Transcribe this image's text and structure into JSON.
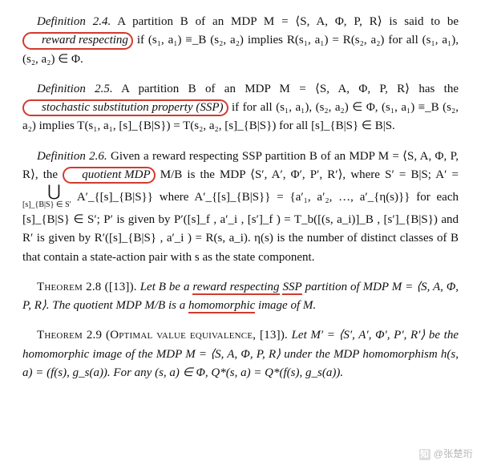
{
  "def24": {
    "label": "Definition 2.4.",
    "text1": "A partition B of an MDP M = ⟨S, A, Φ, P, R⟩ is said to be ",
    "highlight": "reward respecting",
    "text2": " if (s₁, a₁) ≡_B (s₂, a₂) implies R(s₁, a₁) = R(s₂, a₂) for all (s₁, a₁), (s₂, a₂) ∈ Φ."
  },
  "def25": {
    "label": "Definition 2.5.",
    "text1": "A partition B of an MDP M = ⟨S, A, Φ, P, R⟩ has the ",
    "highlight": "stochastic substitution property (SSP)",
    "text2": " if for all (s₁, a₁), (s₂, a₂) ∈ Φ, (s₁, a₁) ≡_B (s₂, a₂) implies T(s₁, a₁, [s]_{B|S}) = T(s₂, a₂, [s]_{B|S}) for all [s]_{B|S} ∈ B|S."
  },
  "def26": {
    "label": "Definition 2.6.",
    "text1": "Given a reward respecting SSP partition B of an MDP M = ⟨S, A, Φ, P, R⟩, the ",
    "highlight": "quotient MDP",
    "text2a": " M/B is the MDP ⟨S′, A′, Φ′, P′, R′⟩, where S′ = B|S; A′ = ",
    "union_sub": "[s]_{B|S} ∈ S′",
    "text2b": " A′_{[s]_{B|S}}  where A′_{[s]_{B|S}} = {a′₁, a′₂, …, a′_{η(s)}} for each [s]_{B|S} ∈ S′; P′ is given by P′([s]_f , a′_i , [s′]_f ) = T_b([(s, a_i)]_B , [s′]_{B|S}) and R′ is given by R′([s]_{B|S} , a′_i ) = R(s, a_i). η(s) is the number of distinct classes of B that contain a state-action pair with s as the state component."
  },
  "thm28": {
    "label": "Theorem 2.8 ([13]).",
    "pre1": "Let B be a ",
    "ul1": "reward respecting",
    "mid1": " ",
    "ul2": "SSP",
    "post1": " partition of MDP M = ⟨S, A, Φ, P, R⟩. The quotient MDP M/B is a ",
    "ul3": "homomorphic",
    "post2": " image of M."
  },
  "thm29": {
    "label": "Theorem 2.9 (Optimal value equivalence, [13]).",
    "text": "Let M′ = ⟨S′, A′, Φ′, P′, R′⟩ be the homomorphic image of the MDP M = ⟨S, A, Φ, P, R⟩ under the MDP homomorphism h(s, a) = (f(s), g_s(a)). For any (s, a) ∈ Φ, Q*(s, a) = Q*(f(s), g_s(a))."
  },
  "watermark": "@张楚珩",
  "colors": {
    "annotation": "#d33a2f"
  }
}
